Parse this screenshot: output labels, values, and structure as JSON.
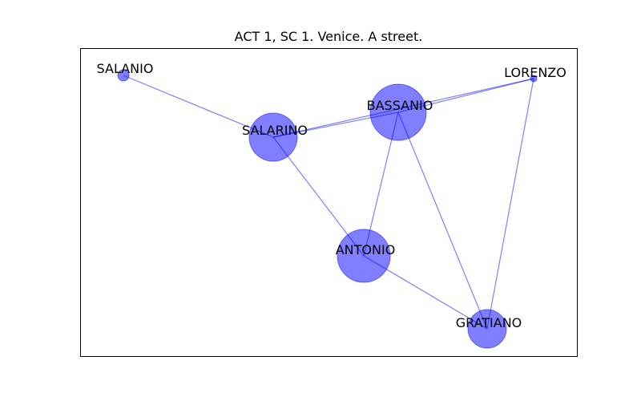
{
  "title": "ACT 1, SC 1. Venice. A street.",
  "colors": {
    "node_fill": "#0000ff",
    "node_stroke": "#0000ff",
    "edge": "#0000ff",
    "frame": "#000000",
    "text": "#000000"
  },
  "nodes": [
    {
      "id": "SALANIO",
      "label": "SALANIO"
    },
    {
      "id": "LORENZO",
      "label": "LORENZO"
    },
    {
      "id": "BASSANIO",
      "label": "BASSANIO"
    },
    {
      "id": "SALARINO",
      "label": "SALARINO"
    },
    {
      "id": "ANTONIO",
      "label": "ANTONIO"
    },
    {
      "id": "GRATIANO",
      "label": "GRATIANO"
    }
  ],
  "edges": [
    {
      "source": "SALANIO",
      "target": "SALARINO"
    },
    {
      "source": "SALARINO",
      "target": "BASSANIO"
    },
    {
      "source": "SALARINO",
      "target": "LORENZO"
    },
    {
      "source": "SALARINO",
      "target": "ANTONIO"
    },
    {
      "source": "BASSANIO",
      "target": "LORENZO"
    },
    {
      "source": "BASSANIO",
      "target": "ANTONIO"
    },
    {
      "source": "BASSANIO",
      "target": "GRATIANO"
    },
    {
      "source": "ANTONIO",
      "target": "GRATIANO"
    },
    {
      "source": "LORENZO",
      "target": "GRATIANO"
    }
  ]
}
